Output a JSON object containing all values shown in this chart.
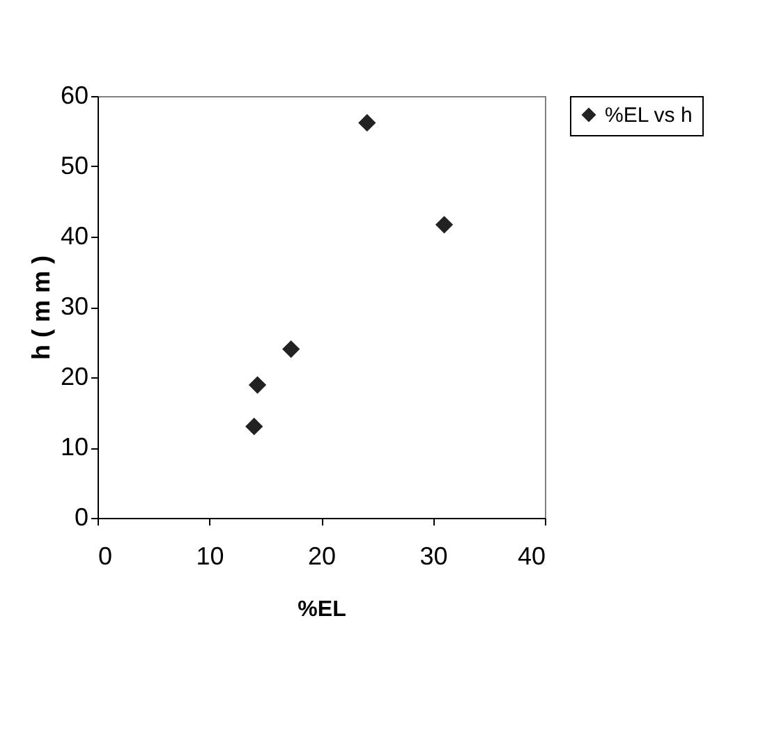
{
  "chart_data": {
    "type": "scatter",
    "xlabel": "%EL",
    "ylabel": "h ( m m )",
    "x": [
      14.0,
      14.3,
      17.3,
      24.1,
      31.0
    ],
    "series": [
      {
        "name": "%EL vs h",
        "color": "#222222",
        "values": [
          13.0,
          18.9,
          24.0,
          56.2,
          41.7
        ]
      }
    ],
    "xlim": [
      0,
      40
    ],
    "xticks": [
      0,
      10,
      20,
      30,
      40
    ],
    "ylim": [
      0,
      60
    ],
    "yticks": [
      0,
      10,
      20,
      30,
      40,
      50,
      60
    ],
    "marker": "diamond",
    "grid": false,
    "legend": "right"
  }
}
